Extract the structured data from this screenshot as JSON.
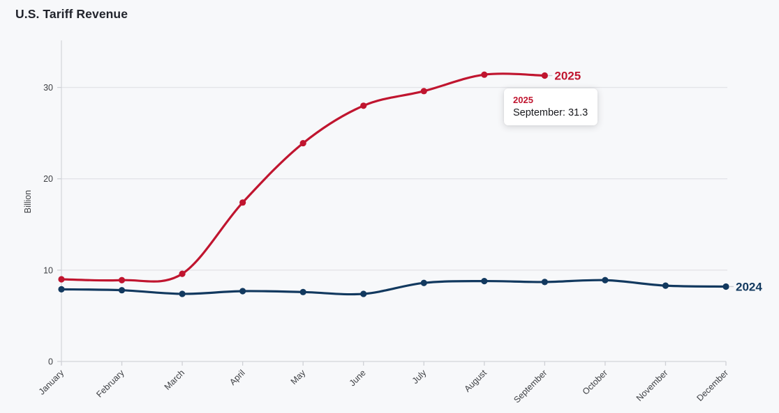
{
  "title": "U.S. Tariff Revenue",
  "colors": {
    "series_2025": "#c0152f",
    "series_2024": "#12395f",
    "background": "#f7f8fa",
    "gridline": "#e3e4e8",
    "axis_line": "#d8dade",
    "tick": "#cfd1d6",
    "axis_text": "#3e4044",
    "title_text": "#21242c",
    "tooltip_bg": "#ffffff"
  },
  "chart_data": {
    "type": "line",
    "title": "U.S. Tariff Revenue",
    "xlabel": "",
    "ylabel": "Billion",
    "categories": [
      "January",
      "February",
      "March",
      "April",
      "May",
      "June",
      "July",
      "August",
      "September",
      "October",
      "November",
      "December"
    ],
    "yticks": [
      0,
      10,
      20,
      30
    ],
    "ylim": [
      0,
      35
    ],
    "grid": true,
    "smooth": true,
    "legend_position": "series-end-labels",
    "series": [
      {
        "name": "2024",
        "color": "#12395f",
        "values": [
          7.9,
          7.8,
          7.4,
          7.7,
          7.6,
          7.4,
          8.6,
          8.8,
          8.7,
          8.9,
          8.3,
          8.2
        ]
      },
      {
        "name": "2025",
        "color": "#c0152f",
        "values": [
          9.0,
          8.9,
          9.6,
          17.4,
          23.9,
          28.0,
          29.6,
          31.4,
          31.3
        ]
      }
    ]
  },
  "tooltip": {
    "series_name": "2025",
    "value_text": "September: 31.3",
    "month": "September",
    "value": 31.3
  }
}
